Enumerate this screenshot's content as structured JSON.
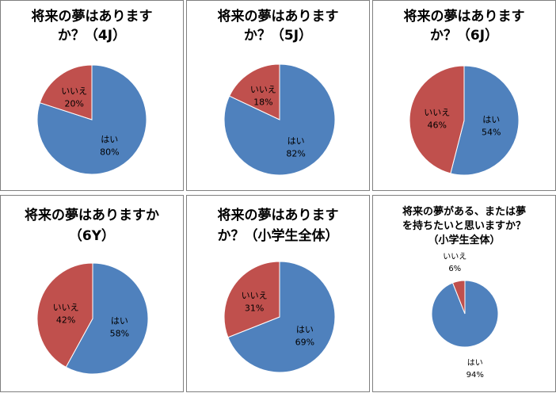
{
  "colors": {
    "yes": "#4f81bd",
    "no": "#c0504d"
  },
  "chart_data": [
    {
      "type": "pie",
      "title": "将来の夢はあります\nか？（4J）",
      "categories": [
        "はい",
        "いいえ"
      ],
      "values": [
        80,
        20
      ],
      "value_labels": [
        "80%",
        "20%"
      ]
    },
    {
      "type": "pie",
      "title": "将来の夢はあります\nか？（5J）",
      "categories": [
        "はい",
        "いいえ"
      ],
      "values": [
        82,
        18
      ],
      "value_labels": [
        "82%",
        "18%"
      ]
    },
    {
      "type": "pie",
      "title": "将来の夢はあります\nか？（6J）",
      "categories": [
        "はい",
        "いいえ"
      ],
      "values": [
        54,
        46
      ],
      "value_labels": [
        "54%",
        "46%"
      ]
    },
    {
      "type": "pie",
      "title": "将来の夢はありますか\n（6Y）",
      "categories": [
        "はい",
        "いいえ"
      ],
      "values": [
        58,
        42
      ],
      "value_labels": [
        "58%",
        "42%"
      ]
    },
    {
      "type": "pie",
      "title": "将来の夢はあります\nか？（小学生全体）",
      "categories": [
        "はい",
        "いいえ"
      ],
      "values": [
        69,
        31
      ],
      "value_labels": [
        "69%",
        "31%"
      ]
    },
    {
      "type": "pie",
      "title": "将来の夢がある、または夢\nを持ちたいと思いますか？\n（小学生全体）",
      "categories": [
        "はい",
        "いいえ"
      ],
      "values": [
        94,
        6
      ],
      "value_labels": [
        "94%",
        "6%"
      ]
    }
  ]
}
